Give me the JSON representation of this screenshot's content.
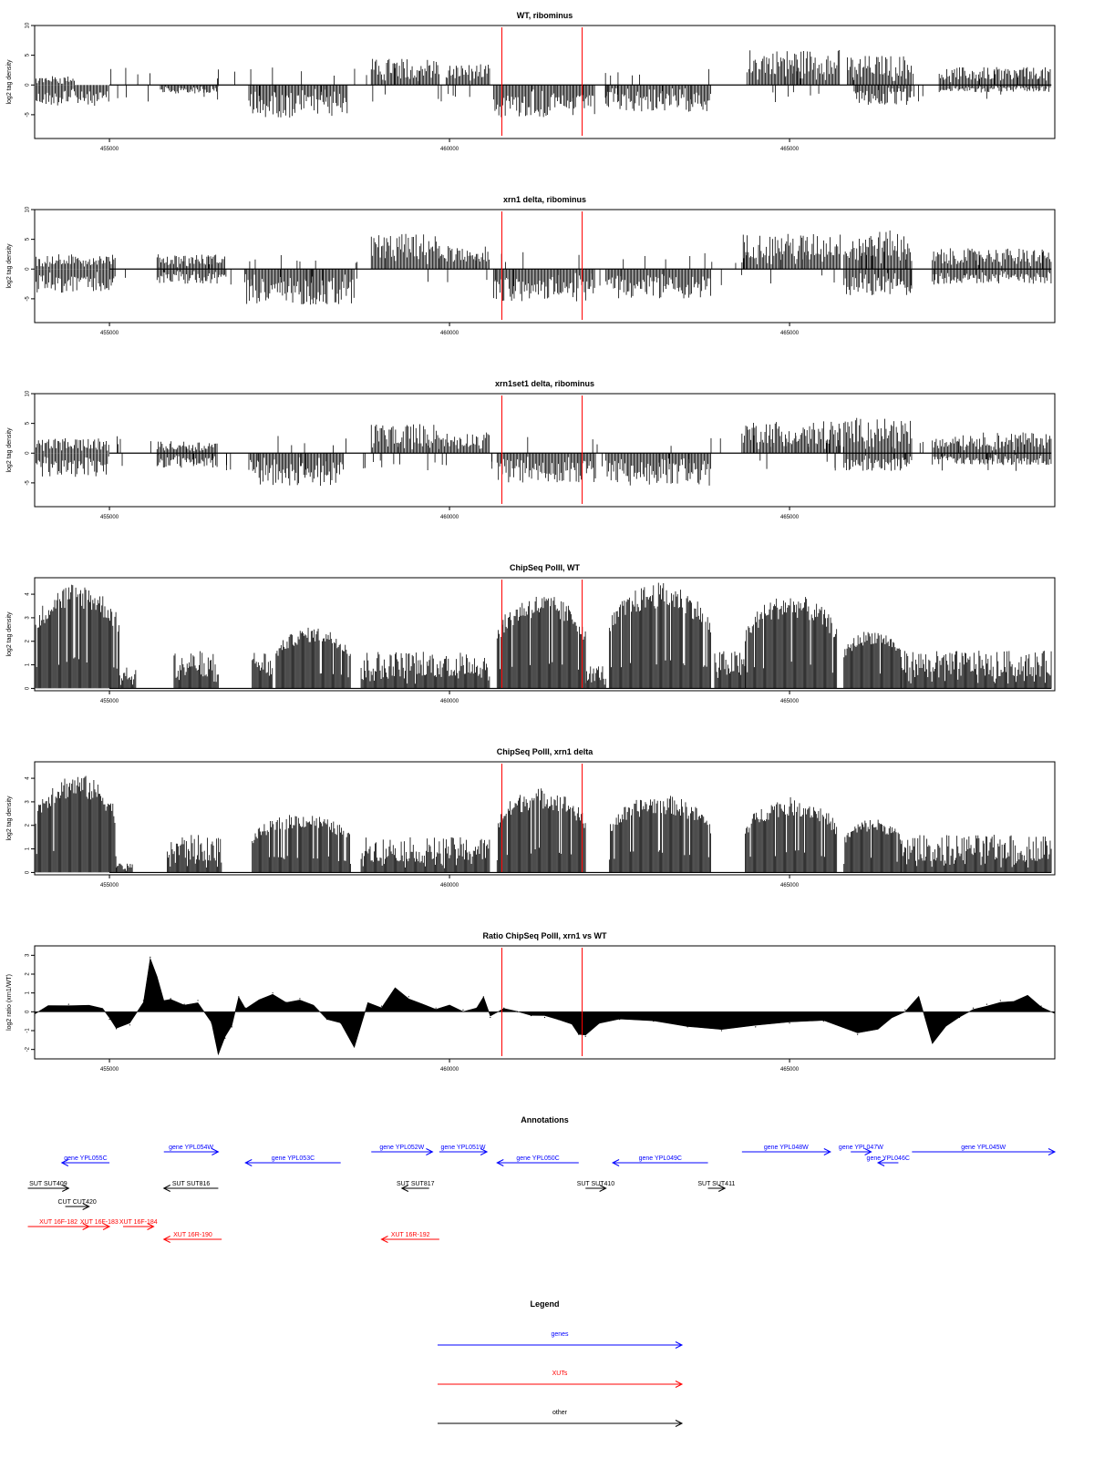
{
  "colors": {
    "gene": "#0000ff",
    "xut": "#ff0000",
    "other": "#000000",
    "marker": "#ff0000"
  },
  "chart_data": [
    {
      "type": "bar",
      "title": "WT, ribominus",
      "ylabel": "log2 tag density",
      "xlim": [
        453900,
        468900
      ],
      "ylim": [
        -9,
        10
      ],
      "yticks": [
        -5,
        0,
        5,
        10
      ],
      "xticks": [
        455000,
        460000,
        465000
      ],
      "markers": [
        460770,
        461950
      ],
      "segments": [
        {
          "from": 453900,
          "to": 455000,
          "strand": "-",
          "amp": 3.5
        },
        {
          "from": 453900,
          "to": 454500,
          "strand": "+",
          "amp": 1.5
        },
        {
          "from": 455750,
          "to": 456600,
          "strand": "-",
          "amp": 1.5
        },
        {
          "from": 457050,
          "to": 458500,
          "strand": "-",
          "amp": 5.5
        },
        {
          "from": 458850,
          "to": 459850,
          "strand": "+",
          "amp": 4.5
        },
        {
          "from": 459950,
          "to": 460600,
          "strand": "+",
          "amp": 3.5
        },
        {
          "from": 460650,
          "to": 462150,
          "strand": "-",
          "amp": 5.5
        },
        {
          "from": 462300,
          "to": 463850,
          "strand": "-",
          "amp": 4.5
        },
        {
          "from": 464400,
          "to": 465750,
          "strand": "+",
          "amp": 6.0
        },
        {
          "from": 465850,
          "to": 466800,
          "strand": "+",
          "amp": 5.0
        },
        {
          "from": 465950,
          "to": 466800,
          "strand": "-",
          "amp": 3.5
        },
        {
          "from": 467200,
          "to": 468850,
          "strand": "+",
          "amp": 3.0
        },
        {
          "from": 467200,
          "to": 468850,
          "strand": "-",
          "amp": 1.2
        }
      ]
    },
    {
      "type": "bar",
      "title": "xrn1 delta, ribominus",
      "ylabel": "log2 tag density",
      "xlim": [
        453900,
        468900
      ],
      "ylim": [
        -9,
        10
      ],
      "yticks": [
        -5,
        0,
        5,
        10
      ],
      "xticks": [
        455000,
        460000,
        465000
      ],
      "markers": [
        460770,
        461950
      ],
      "segments": [
        {
          "from": 453900,
          "to": 455100,
          "strand": "-",
          "amp": 4.0
        },
        {
          "from": 453900,
          "to": 455100,
          "strand": "+",
          "amp": 2.5
        },
        {
          "from": 455700,
          "to": 456700,
          "strand": "+",
          "amp": 2.5
        },
        {
          "from": 455700,
          "to": 456700,
          "strand": "-",
          "amp": 2.5
        },
        {
          "from": 457000,
          "to": 458600,
          "strand": "-",
          "amp": 6.0
        },
        {
          "from": 458850,
          "to": 459850,
          "strand": "+",
          "amp": 6.0
        },
        {
          "from": 459850,
          "to": 460600,
          "strand": "+",
          "amp": 4.0
        },
        {
          "from": 460650,
          "to": 462150,
          "strand": "-",
          "amp": 5.5
        },
        {
          "from": 462300,
          "to": 463850,
          "strand": "-",
          "amp": 5.0
        },
        {
          "from": 464300,
          "to": 465750,
          "strand": "+",
          "amp": 6.0
        },
        {
          "from": 465800,
          "to": 466800,
          "strand": "+",
          "amp": 6.5
        },
        {
          "from": 465800,
          "to": 466800,
          "strand": "-",
          "amp": 4.5
        },
        {
          "from": 467100,
          "to": 468850,
          "strand": "+",
          "amp": 3.5
        },
        {
          "from": 467100,
          "to": 468850,
          "strand": "-",
          "amp": 2.5
        }
      ]
    },
    {
      "type": "bar",
      "title": "xrn1set1 delta, ribominus",
      "ylabel": "log2 tag density",
      "xlim": [
        453900,
        468900
      ],
      "ylim": [
        -9,
        10
      ],
      "yticks": [
        -5,
        0,
        5,
        10
      ],
      "xticks": [
        455000,
        460000,
        465000
      ],
      "markers": [
        460770,
        461950
      ],
      "segments": [
        {
          "from": 453900,
          "to": 455000,
          "strand": "-",
          "amp": 4.0
        },
        {
          "from": 453900,
          "to": 455000,
          "strand": "+",
          "amp": 2.5
        },
        {
          "from": 455700,
          "to": 456600,
          "strand": "+",
          "amp": 2.0
        },
        {
          "from": 455700,
          "to": 456600,
          "strand": "-",
          "amp": 2.5
        },
        {
          "from": 457050,
          "to": 458450,
          "strand": "-",
          "amp": 5.5
        },
        {
          "from": 458850,
          "to": 459850,
          "strand": "+",
          "amp": 5.0
        },
        {
          "from": 459850,
          "to": 460600,
          "strand": "+",
          "amp": 3.5
        },
        {
          "from": 460700,
          "to": 462150,
          "strand": "-",
          "amp": 5.0
        },
        {
          "from": 462300,
          "to": 463850,
          "strand": "-",
          "amp": 5.5
        },
        {
          "from": 464300,
          "to": 465750,
          "strand": "+",
          "amp": 5.5
        },
        {
          "from": 465800,
          "to": 466800,
          "strand": "+",
          "amp": 6.0
        },
        {
          "from": 465800,
          "to": 466800,
          "strand": "-",
          "amp": 3.0
        },
        {
          "from": 467100,
          "to": 468850,
          "strand": "+",
          "amp": 3.5
        },
        {
          "from": 467100,
          "to": 468850,
          "strand": "-",
          "amp": 2.0
        }
      ]
    },
    {
      "type": "bar",
      "title": "ChipSeq PolII, WT",
      "ylabel": "log2 tag density",
      "xlim": [
        453900,
        468900
      ],
      "ylim": [
        -0.1,
        4.7
      ],
      "yticks": [
        0,
        1,
        2,
        3,
        4
      ],
      "xticks": [
        455000,
        460000,
        465000
      ],
      "markers": [
        460770,
        461950
      ],
      "segments": [
        {
          "from": 453900,
          "to": 455150,
          "strand": "peak",
          "amp": 4.5
        },
        {
          "from": 455150,
          "to": 455400,
          "strand": "+",
          "amp": 1.0
        },
        {
          "from": 455950,
          "to": 456600,
          "strand": "+",
          "amp": 1.6
        },
        {
          "from": 457100,
          "to": 457400,
          "strand": "+",
          "amp": 1.6
        },
        {
          "from": 457450,
          "to": 458550,
          "strand": "peak",
          "amp": 2.6
        },
        {
          "from": 458700,
          "to": 460600,
          "strand": "+",
          "amp": 1.6
        },
        {
          "from": 460700,
          "to": 462000,
          "strand": "peak",
          "amp": 4.0
        },
        {
          "from": 462000,
          "to": 462300,
          "strand": "+",
          "amp": 1.0
        },
        {
          "from": 462350,
          "to": 463850,
          "strand": "peak",
          "amp": 4.5
        },
        {
          "from": 463900,
          "to": 464350,
          "strand": "+",
          "amp": 1.6
        },
        {
          "from": 464350,
          "to": 465700,
          "strand": "peak",
          "amp": 4.0
        },
        {
          "from": 465800,
          "to": 466650,
          "strand": "peak",
          "amp": 2.5
        },
        {
          "from": 466650,
          "to": 468850,
          "strand": "+",
          "amp": 1.6
        }
      ]
    },
    {
      "type": "bar",
      "title": "ChipSeq PolII, xrn1 delta",
      "ylabel": "log2 tag density",
      "xlim": [
        453900,
        468900
      ],
      "ylim": [
        -0.1,
        4.7
      ],
      "yticks": [
        0,
        1,
        2,
        3,
        4
      ],
      "xticks": [
        455000,
        460000,
        465000
      ],
      "markers": [
        460770,
        461950
      ],
      "segments": [
        {
          "from": 453900,
          "to": 455100,
          "strand": "peak",
          "amp": 4.2
        },
        {
          "from": 455100,
          "to": 455350,
          "strand": "+",
          "amp": 0.4
        },
        {
          "from": 455850,
          "to": 456650,
          "strand": "+",
          "amp": 1.6
        },
        {
          "from": 457100,
          "to": 458550,
          "strand": "peak",
          "amp": 2.5
        },
        {
          "from": 458700,
          "to": 460600,
          "strand": "+",
          "amp": 1.5
        },
        {
          "from": 460700,
          "to": 462000,
          "strand": "peak",
          "amp": 3.6
        },
        {
          "from": 462350,
          "to": 463850,
          "strand": "peak",
          "amp": 3.3
        },
        {
          "from": 464350,
          "to": 465700,
          "strand": "peak",
          "amp": 3.2
        },
        {
          "from": 465800,
          "to": 466650,
          "strand": "peak",
          "amp": 2.3
        },
        {
          "from": 466650,
          "to": 468850,
          "strand": "+",
          "amp": 1.6
        }
      ]
    },
    {
      "type": "area",
      "title": "Ratio ChipSeq PolII, xrn1 vs WT",
      "ylabel": "log2 ratio (xrn1/WT)",
      "xlim": [
        453900,
        468900
      ],
      "ylim": [
        -2.5,
        3.5
      ],
      "yticks": [
        -2,
        -1,
        0,
        1,
        2,
        3
      ],
      "xticks": [
        455000,
        460000,
        465000
      ],
      "markers": [
        460770,
        461950
      ],
      "x": [
        453900,
        454100,
        454400,
        454700,
        454900,
        455000,
        455100,
        455300,
        455500,
        455600,
        455700,
        455800,
        455900,
        456100,
        456300,
        456500,
        456600,
        456700,
        456800,
        456900,
        457000,
        457200,
        457400,
        457600,
        457800,
        458000,
        458200,
        458400,
        458600,
        458800,
        459000,
        459200,
        459400,
        459600,
        459800,
        460000,
        460200,
        460400,
        460500,
        460600,
        460800,
        461000,
        461200,
        461400,
        461600,
        461800,
        461900,
        462000,
        462200,
        462500,
        463000,
        463500,
        464000,
        464500,
        465000,
        465500,
        466000,
        466300,
        466500,
        466700,
        466900,
        467100,
        467300,
        467500,
        467700,
        467900,
        468100,
        468300,
        468500,
        468700,
        468900
      ],
      "values": [
        -0.2,
        0.3,
        0.4,
        0.3,
        0.1,
        -0.4,
        -0.9,
        -0.7,
        0.6,
        2.9,
        1.8,
        0.5,
        0.7,
        0.4,
        0.6,
        -0.6,
        -2.2,
        -1.4,
        -0.8,
        0.8,
        0.2,
        0.6,
        1.0,
        0.5,
        0.7,
        0.3,
        -0.4,
        -0.6,
        -1.8,
        0.4,
        0.3,
        1.2,
        0.8,
        0.3,
        0.2,
        0.3,
        0.1,
        0.2,
        0.8,
        -0.3,
        0.2,
        0.0,
        -0.2,
        -0.3,
        -0.4,
        -0.6,
        -1.2,
        -1.3,
        -0.6,
        -0.4,
        -0.5,
        -0.8,
        -1.0,
        -0.8,
        -0.6,
        -0.5,
        -1.2,
        -0.9,
        -0.3,
        0.1,
        0.7,
        -1.6,
        -0.7,
        -0.3,
        0.2,
        0.4,
        0.6,
        0.5,
        0.8,
        0.3,
        0.0
      ]
    }
  ],
  "annotations": {
    "title": "Annotations",
    "xlim": [
      453900,
      468900
    ],
    "items": [
      {
        "label": "gene YPL055C",
        "type": "gene",
        "strand": "-",
        "from": 454300,
        "to": 455000,
        "row": 1
      },
      {
        "label": "gene YPL054W",
        "type": "gene",
        "strand": "+",
        "from": 455800,
        "to": 456600,
        "row": 0
      },
      {
        "label": "gene YPL053C",
        "type": "gene",
        "strand": "-",
        "from": 457000,
        "to": 458400,
        "row": 1
      },
      {
        "label": "gene YPL052W",
        "type": "gene",
        "strand": "+",
        "from": 458850,
        "to": 459750,
        "row": 0
      },
      {
        "label": "gene YPL051W",
        "type": "gene",
        "strand": "+",
        "from": 459850,
        "to": 460550,
        "row": 0
      },
      {
        "label": "gene YPL050C",
        "type": "gene",
        "strand": "-",
        "from": 460700,
        "to": 461900,
        "row": 1
      },
      {
        "label": "gene YPL049C",
        "type": "gene",
        "strand": "-",
        "from": 462400,
        "to": 463800,
        "row": 1
      },
      {
        "label": "gene YPL048W",
        "type": "gene",
        "strand": "+",
        "from": 464300,
        "to": 465600,
        "row": 0
      },
      {
        "label": "gene YPL047W",
        "type": "gene",
        "strand": "+",
        "from": 465900,
        "to": 466200,
        "row": 0
      },
      {
        "label": "gene YPL046C",
        "type": "gene",
        "strand": "-",
        "from": 466300,
        "to": 466600,
        "row": 1
      },
      {
        "label": "gene YPL045W",
        "type": "gene",
        "strand": "+",
        "from": 466800,
        "to": 468900,
        "row": 0
      },
      {
        "label": "SUT SUT409",
        "type": "other",
        "strand": "+",
        "from": 453800,
        "to": 454400,
        "row": 3
      },
      {
        "label": "CUT CUT420",
        "type": "other",
        "strand": "+",
        "from": 454350,
        "to": 454700,
        "row": 4
      },
      {
        "label": "SUT SUT816",
        "type": "other",
        "strand": "-",
        "from": 455800,
        "to": 456600,
        "row": 3
      },
      {
        "label": "SUT SUT817",
        "type": "other",
        "strand": "-",
        "from": 459300,
        "to": 459700,
        "row": 3
      },
      {
        "label": "SUT SUT410",
        "type": "other",
        "strand": "+",
        "from": 462000,
        "to": 462300,
        "row": 3
      },
      {
        "label": "SUT SUT411",
        "type": "other",
        "strand": "+",
        "from": 463800,
        "to": 464050,
        "row": 3
      },
      {
        "label": "XUT 16F-182",
        "type": "xut",
        "strand": "+",
        "from": 453800,
        "to": 454700,
        "row": 5
      },
      {
        "label": "XUT 16F-183",
        "type": "xut",
        "strand": "+",
        "from": 454700,
        "to": 455000,
        "row": 5
      },
      {
        "label": "XUT 16F-184",
        "type": "xut",
        "strand": "+",
        "from": 455200,
        "to": 455650,
        "row": 5
      },
      {
        "label": "XUT 16R-190",
        "type": "xut",
        "strand": "-",
        "from": 455800,
        "to": 456650,
        "row": 6
      },
      {
        "label": "XUT 16R-192",
        "type": "xut",
        "strand": "-",
        "from": 459000,
        "to": 459850,
        "row": 6
      }
    ]
  },
  "legend": {
    "title": "Legend",
    "entries": [
      {
        "label": "genes",
        "type": "gene"
      },
      {
        "label": "XUTs",
        "type": "xut"
      },
      {
        "label": "other",
        "type": "other"
      }
    ]
  }
}
